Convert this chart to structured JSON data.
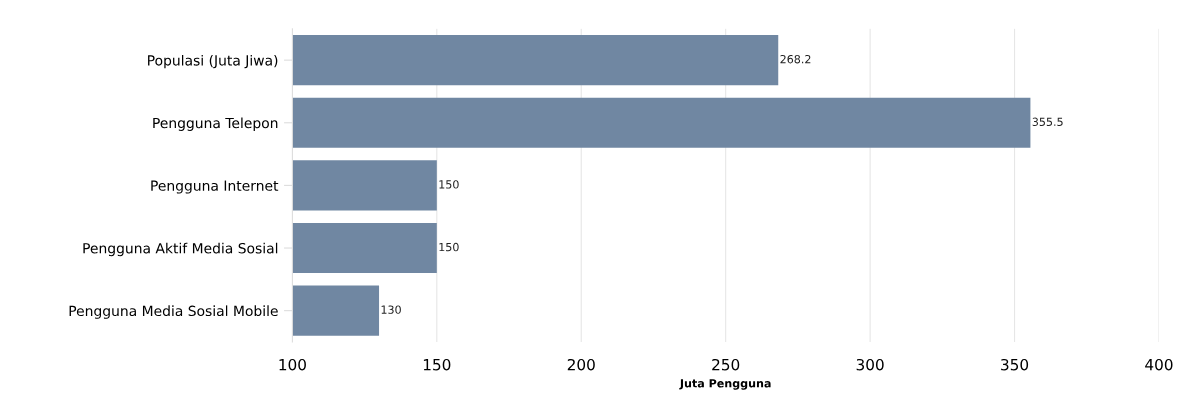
{
  "chart_data": {
    "type": "bar",
    "orientation": "horizontal",
    "xlabel": "Juta Pengguna",
    "categories": [
      "Populasi (Juta Jiwa)",
      "Pengguna Telepon",
      "Pengguna Internet",
      "Pengguna Aktif Media Sosial",
      "Pengguna Media Sosial Mobile"
    ],
    "values": [
      268.2,
      355.5,
      150,
      150,
      130
    ],
    "color": "#7087a2",
    "xlim": [
      100,
      400
    ],
    "xticks": [
      100,
      150,
      200,
      250,
      300,
      350,
      400
    ],
    "grid": "x",
    "data_labels": true
  }
}
